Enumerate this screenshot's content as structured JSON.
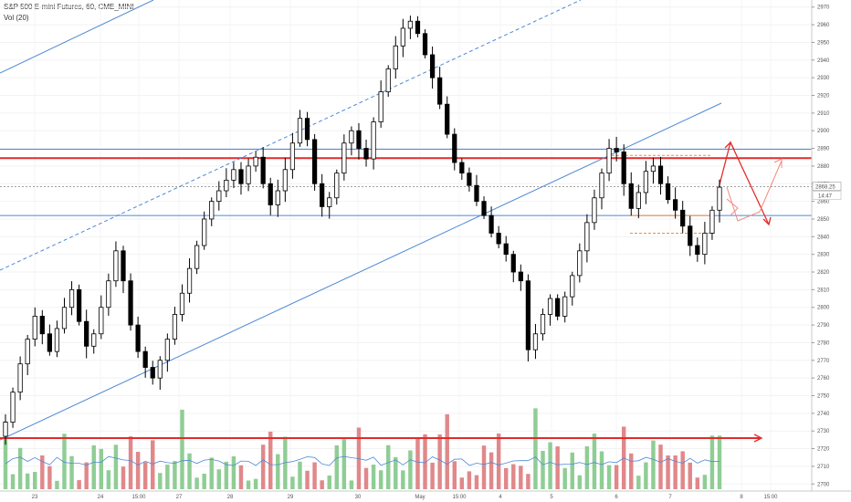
{
  "header": {
    "title": "S&P 500 E-mini Futures, 60, CME_MINI",
    "volume_label": "Vol (20)"
  },
  "chart_data": {
    "type": "candlestick",
    "y_ticks": [
      2700,
      2710,
      2720,
      2730,
      2740,
      2750,
      2760,
      2770,
      2780,
      2790,
      2800,
      2810,
      2820,
      2830,
      2840,
      2850,
      2860,
      2870,
      2880,
      2890,
      2900,
      2910,
      2920,
      2930,
      2940,
      2950,
      2960,
      2970
    ],
    "y_range": [
      2696,
      2974
    ],
    "x_labels": [
      "23",
      "24",
      "15:00",
      "27",
      "28",
      "29",
      "30",
      "May",
      "15:00",
      "4",
      "5",
      "6",
      "7",
      "8",
      "15:00"
    ],
    "price_label": "2868.25",
    "countdown_label": "14:47",
    "colors": {
      "candle_up": "#ffffff",
      "candle_down": "#000000",
      "vol_up": "#8fcd95",
      "vol_down": "#e0888a",
      "trendline": "#4f88d6",
      "red_level": "#e32b2b",
      "orange": "#f28d42"
    },
    "horizontal_levels": [
      {
        "price": 2889.5,
        "color": "#4f88d6"
      },
      {
        "price": 2884.5,
        "color": "#e32b2b"
      },
      {
        "price": 2852.0,
        "color": "#4f88d6"
      }
    ],
    "volume_level_price": 2726,
    "closes": [
      2735,
      2752,
      2768,
      2782,
      2795,
      2785,
      2775,
      2788,
      2800,
      2810,
      2792,
      2778,
      2785,
      2800,
      2815,
      2832,
      2815,
      2790,
      2775,
      2766,
      2760,
      2770,
      2782,
      2796,
      2808,
      2822,
      2835,
      2850,
      2860,
      2866,
      2872,
      2878,
      2870,
      2880,
      2885,
      2870,
      2858,
      2866,
      2878,
      2893,
      2907,
      2895,
      2870,
      2857,
      2862,
      2876,
      2893,
      2900,
      2890,
      2884,
      2905,
      2922,
      2935,
      2948,
      2958,
      2962,
      2955,
      2943,
      2930,
      2915,
      2898,
      2882,
      2876,
      2869,
      2860,
      2852,
      2842,
      2836,
      2830,
      2820,
      2815,
      2776,
      2785,
      2796,
      2805,
      2795,
      2806,
      2818,
      2832,
      2848,
      2862,
      2876,
      2890,
      2888,
      2870,
      2856,
      2865,
      2877,
      2880,
      2870,
      2861,
      2855,
      2846,
      2835,
      2830,
      2842,
      2855,
      2868
    ]
  }
}
